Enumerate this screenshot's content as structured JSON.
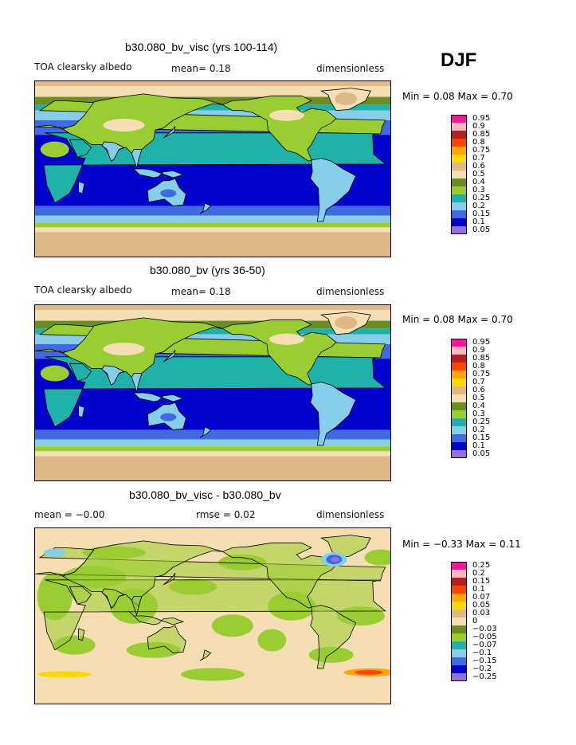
{
  "season": "DJF",
  "colors": {
    "palette": [
      "#9370db",
      "#0000cd",
      "#4169e1",
      "#87ceeb",
      "#20b2aa",
      "#9acd32",
      "#6b8e23",
      "#f5deb3",
      "#deb887",
      "#ffd700",
      "#ffa500",
      "#ff4500",
      "#b22222",
      "#ffb6c1",
      "#ff1493"
    ]
  },
  "chart_data": [
    {
      "type": "heatmap",
      "title": "b30.080_bv_visc (yrs 100-114)",
      "variable": "TOA clearsky albedo",
      "stat1": "mean=   0.18",
      "stat2": "",
      "units": "dimensionless",
      "minmax": "Min =   0.08  Max =   0.70",
      "min": 0.08,
      "max": 0.7,
      "mean": 0.18,
      "levels": [
        "0.05",
        "0.1",
        "0.15",
        "0.2",
        "0.25",
        "0.3",
        "0.4",
        "0.5",
        "0.6",
        "0.7",
        "0.75",
        "0.8",
        "0.85",
        "0.9",
        "0.95"
      ],
      "colors": [
        "#9370db",
        "#0000cd",
        "#4169e1",
        "#87ceeb",
        "#20b2aa",
        "#9acd32",
        "#6b8e23",
        "#f5deb3",
        "#deb887",
        "#ffd700",
        "#ffa500",
        "#ff4500",
        "#b22222",
        "#ffb6c1",
        "#ff1493"
      ],
      "kind": "abs"
    },
    {
      "type": "heatmap",
      "title": "b30.080_bv (yrs 36-50)",
      "variable": "TOA clearsky albedo",
      "stat1": "mean=   0.18",
      "stat2": "",
      "units": "dimensionless",
      "minmax": "Min =   0.08  Max =   0.70",
      "min": 0.08,
      "max": 0.7,
      "mean": 0.18,
      "levels": [
        "0.05",
        "0.1",
        "0.15",
        "0.2",
        "0.25",
        "0.3",
        "0.4",
        "0.5",
        "0.6",
        "0.7",
        "0.75",
        "0.8",
        "0.85",
        "0.9",
        "0.95"
      ],
      "colors": [
        "#9370db",
        "#0000cd",
        "#4169e1",
        "#87ceeb",
        "#20b2aa",
        "#9acd32",
        "#6b8e23",
        "#f5deb3",
        "#deb887",
        "#ffd700",
        "#ffa500",
        "#ff4500",
        "#b22222",
        "#ffb6c1",
        "#ff1493"
      ],
      "kind": "abs"
    },
    {
      "type": "heatmap",
      "title": "b30.080_bv_visc - b30.080_bv",
      "variable": "",
      "stat1": "mean =   −0.00",
      "stat2": "rmse =   0.02",
      "units": "dimensionless",
      "minmax": "Min =   −0.33  Max =    0.11",
      "min": -0.33,
      "max": 0.11,
      "mean": -0.0,
      "rmse": 0.02,
      "levels": [
        "−0.25",
        "−0.2",
        "−0.15",
        "−0.1",
        "−0.07",
        "−0.05",
        "−0.03",
        "0",
        "0.03",
        "0.05",
        "0.07",
        "0.1",
        "0.15",
        "0.2",
        "0.25"
      ],
      "colors": [
        "#9370db",
        "#0000cd",
        "#4169e1",
        "#87ceeb",
        "#20b2aa",
        "#9acd32",
        "#6b8e23",
        "#f5deb3",
        "#deb887",
        "#ffd700",
        "#ffa500",
        "#ff4500",
        "#b22222",
        "#ffb6c1",
        "#ff1493"
      ],
      "kind": "diff"
    }
  ]
}
